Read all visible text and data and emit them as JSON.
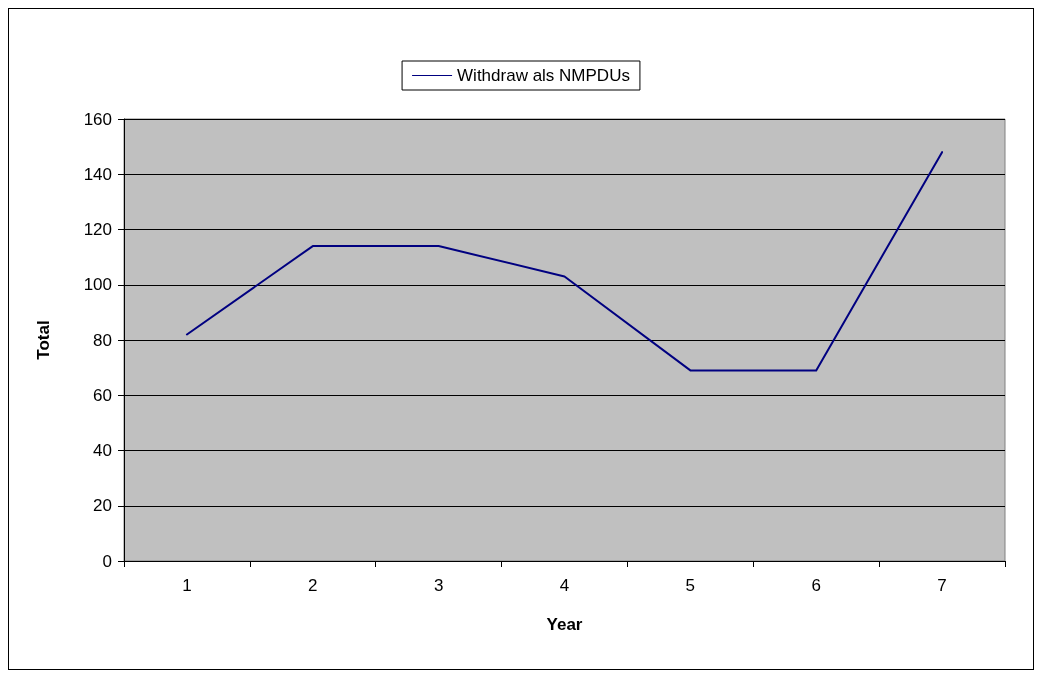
{
  "chart_data": {
    "type": "line",
    "xlabel": "Year",
    "ylabel": "Total",
    "categories": [
      "1",
      "2",
      "3",
      "4",
      "5",
      "6",
      "7"
    ],
    "series": [
      {
        "name": "Withdraw als NMPDUs",
        "color": "#000080",
        "values": [
          82,
          114,
          114,
          103,
          69,
          69,
          148
        ]
      }
    ],
    "ylim": [
      0,
      160
    ],
    "yticks": [
      0,
      20,
      40,
      60,
      80,
      100,
      120,
      140,
      160
    ],
    "grid": "y",
    "legend": "top",
    "marker": "none",
    "line_style": "solid"
  }
}
